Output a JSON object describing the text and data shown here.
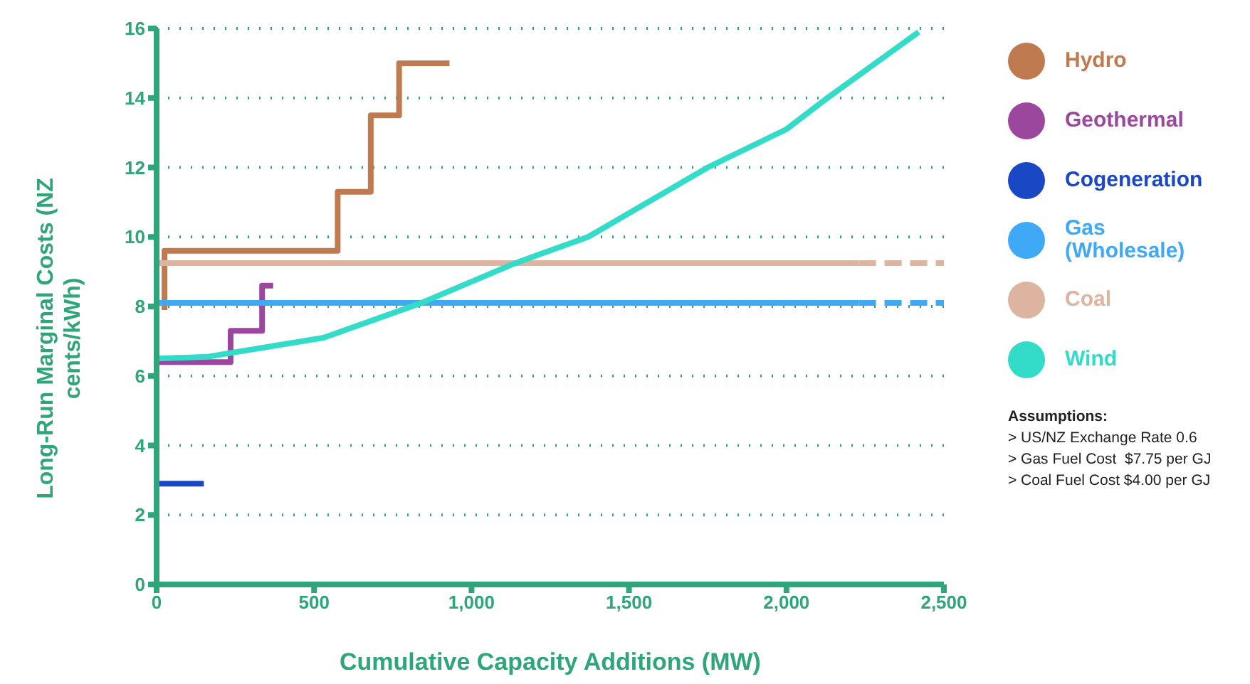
{
  "chart_data": {
    "type": "line",
    "xlabel": "Cumulative Capacity Additions (MW)",
    "ylabel": "Long-Run Marginal Costs (NZ cents/kWh)",
    "xlim": [
      0,
      2500
    ],
    "xticks": [
      0,
      500,
      {
        "value": 1000,
        "label": "1,000"
      },
      {
        "value": 1500,
        "label": "1,500"
      },
      {
        "value": 2000,
        "label": "2,000"
      },
      {
        "value": 2500,
        "label": "2,500"
      }
    ],
    "ylim": [
      0,
      16
    ],
    "yticks": [
      0,
      2,
      4,
      6,
      8,
      10,
      12,
      14,
      16
    ],
    "grid": "y",
    "legend": "right",
    "line_style": "solid",
    "series": [
      {
        "name": "Hydro",
        "color": "#c07a50",
        "x": [
          25,
          25,
          575,
          575,
          680,
          680,
          770,
          770,
          930
        ],
        "values": [
          7.9,
          9.6,
          9.6,
          11.3,
          11.3,
          13.5,
          13.5,
          15,
          15
        ]
      },
      {
        "name": "Geothermal",
        "color": "#9b479e",
        "x": [
          0,
          235,
          235,
          335,
          335,
          370
        ],
        "values": [
          6.4,
          6.4,
          7.3,
          7.3,
          8.6,
          8.6
        ]
      },
      {
        "name": "Cogeneration",
        "color": "#1a47c4",
        "x": [
          0,
          150
        ],
        "values": [
          2.9,
          2.9
        ]
      },
      {
        "name": "Gas (Wholesale)",
        "color": "#3fa9f5",
        "x": [
          0,
          2230
        ],
        "values": [
          8.1,
          8.1
        ]
      },
      {
        "color": "#3fa9f5",
        "x": [
          2230,
          2500
        ],
        "values": [
          8.1,
          8.1
        ],
        "line_style": "dashed"
      },
      {
        "name": "Coal",
        "color": "#dcb4a0",
        "x": [
          0,
          2230
        ],
        "values": [
          9.25,
          9.25
        ]
      },
      {
        "color": "#dcb4a0",
        "x": [
          2230,
          2500
        ],
        "values": [
          9.25,
          9.25
        ],
        "line_style": "dashed"
      },
      {
        "name": "Wind",
        "color": "#33dcc8",
        "x": [
          0,
          160,
          530,
          840,
          1140,
          1370,
          1750,
          2000,
          2130,
          2420
        ],
        "values": [
          6.5,
          6.55,
          7.1,
          8.1,
          9.25,
          10,
          12,
          13.1,
          14,
          15.9
        ]
      }
    ],
    "annotations": [
      "Assumptions:",
      "> US/NZ Exchange Rate 0.6",
      "> Gas Fuel Cost  $7.75 per GJ",
      "> Coal Fuel Cost $4.00 per GJ"
    ]
  }
}
